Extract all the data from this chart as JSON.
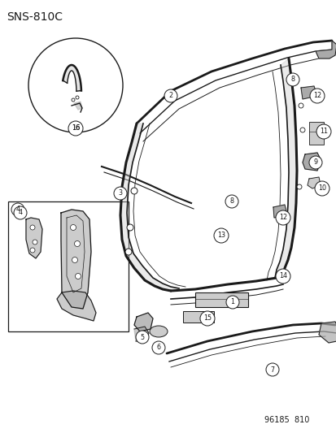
{
  "title": "SNS-810C",
  "footer": "96185  810",
  "bg_color": "#ffffff",
  "line_color": "#1a1a1a",
  "title_fontsize": 10,
  "footer_fontsize": 7,
  "fig_width": 4.14,
  "fig_height": 5.33,
  "dpi": 100
}
